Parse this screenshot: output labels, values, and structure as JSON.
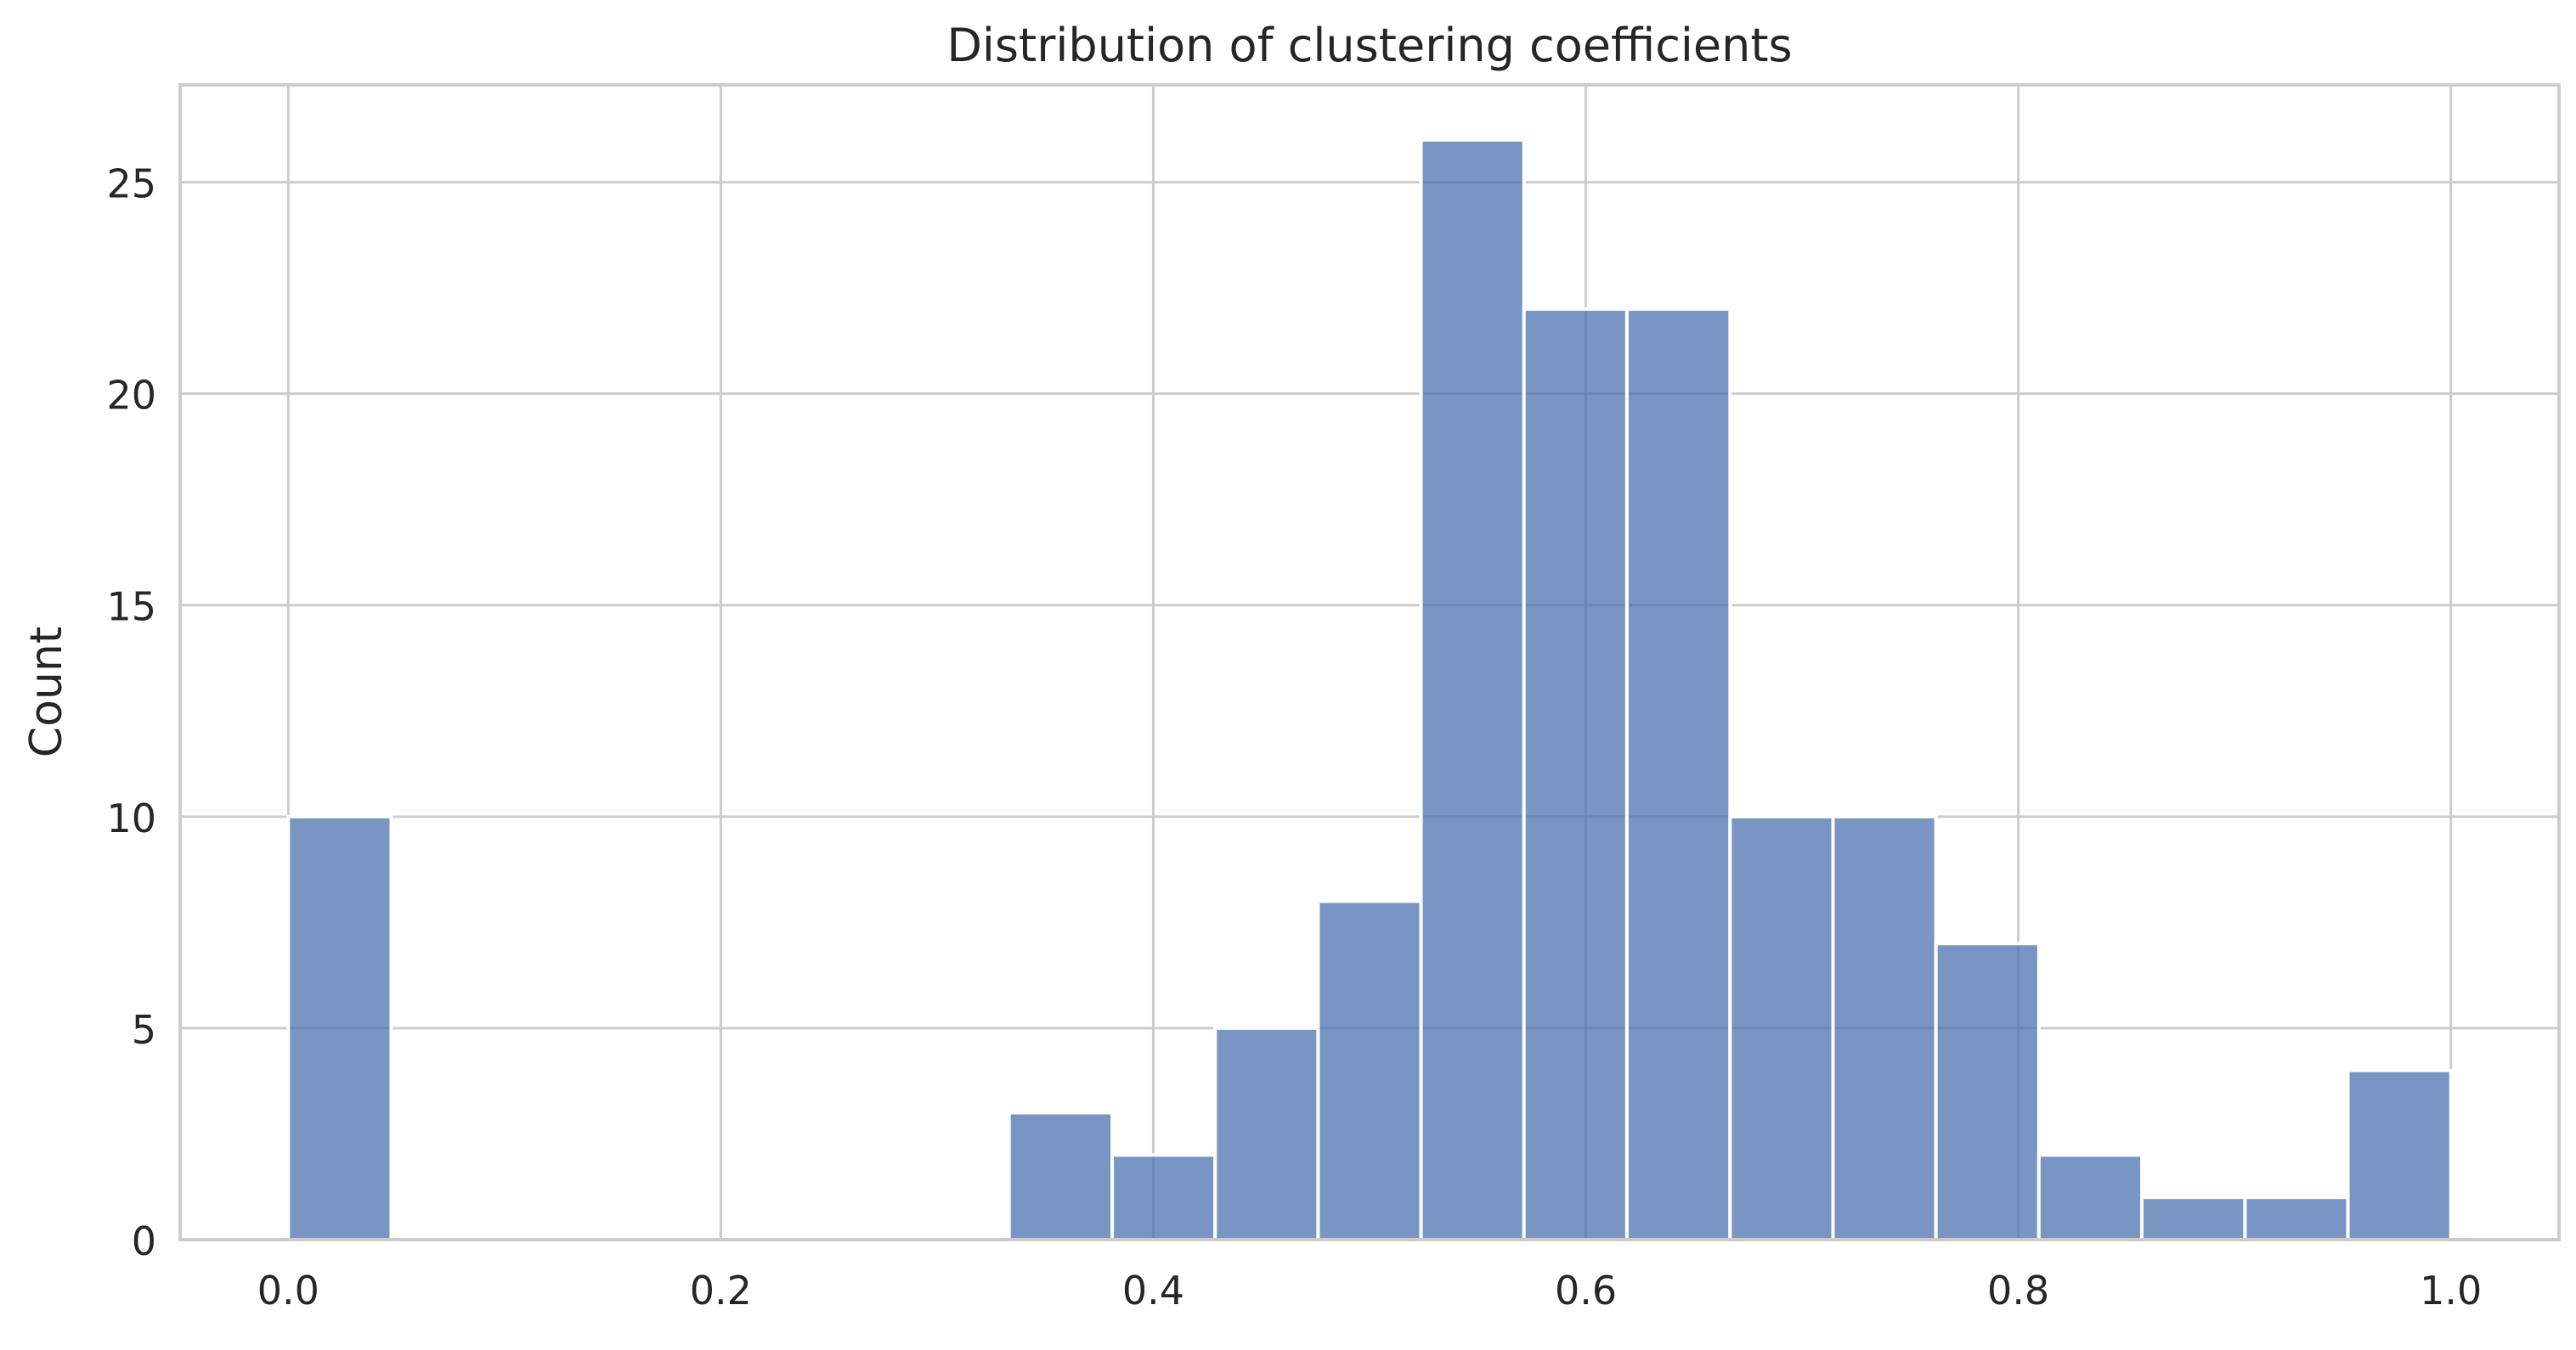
{
  "chart_data": {
    "type": "bar",
    "subtype": "histogram",
    "title": "Distribution of clustering coefficients",
    "xlabel": "",
    "ylabel": "Count",
    "xlim": [
      -0.05,
      1.05
    ],
    "ylim": [
      0,
      27.3
    ],
    "xticks": [
      0.0,
      0.2,
      0.4,
      0.6,
      0.8,
      1.0
    ],
    "xtick_labels": [
      "0.0",
      "0.2",
      "0.4",
      "0.6",
      "0.8",
      "1.0"
    ],
    "yticks": [
      0,
      5,
      10,
      15,
      20,
      25
    ],
    "ytick_labels": [
      "0",
      "5",
      "10",
      "15",
      "20",
      "25"
    ],
    "grid": true,
    "bins": [
      {
        "start": 0.0,
        "end": 0.0476,
        "count": 10
      },
      {
        "start": 0.3333,
        "end": 0.381,
        "count": 3
      },
      {
        "start": 0.381,
        "end": 0.4286,
        "count": 2
      },
      {
        "start": 0.4286,
        "end": 0.4762,
        "count": 5
      },
      {
        "start": 0.4762,
        "end": 0.5238,
        "count": 8
      },
      {
        "start": 0.5238,
        "end": 0.5714,
        "count": 26
      },
      {
        "start": 0.5714,
        "end": 0.619,
        "count": 22
      },
      {
        "start": 0.619,
        "end": 0.6667,
        "count": 22
      },
      {
        "start": 0.6667,
        "end": 0.7143,
        "count": 10
      },
      {
        "start": 0.7143,
        "end": 0.7619,
        "count": 10
      },
      {
        "start": 0.7619,
        "end": 0.8095,
        "count": 7
      },
      {
        "start": 0.8095,
        "end": 0.8571,
        "count": 2
      },
      {
        "start": 0.8571,
        "end": 0.9048,
        "count": 1
      },
      {
        "start": 0.9048,
        "end": 0.9524,
        "count": 1
      },
      {
        "start": 0.9524,
        "end": 1.0,
        "count": 4
      }
    ],
    "colors": {
      "bar_fill": "#4c72b0",
      "bar_edge": "#ffffff",
      "grid": "#cccccc",
      "spine": "#cccccc",
      "text": "#262626"
    }
  }
}
